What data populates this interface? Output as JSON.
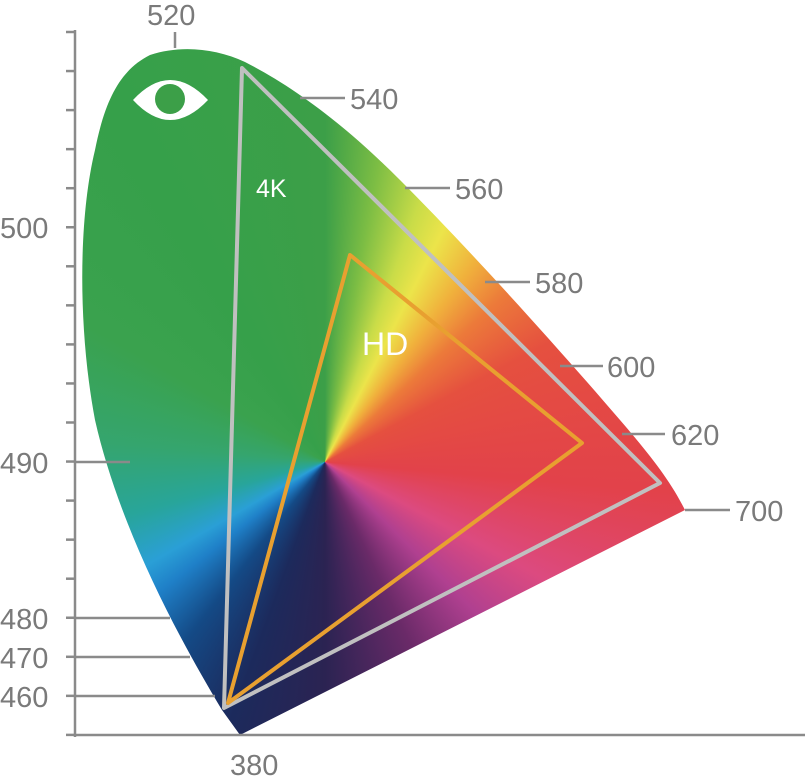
{
  "diagram": {
    "left_axis_labels": [
      "500",
      "490",
      "480",
      "470",
      "460"
    ],
    "wavelength_labels": [
      "520",
      "540",
      "560",
      "580",
      "600",
      "620",
      "700"
    ],
    "bottom_label": "380",
    "gamuts": [
      {
        "name": "4K",
        "color": "#c0c0c0"
      },
      {
        "name": "HD",
        "color": "#e8a030"
      }
    ],
    "icon": "eye-icon"
  }
}
